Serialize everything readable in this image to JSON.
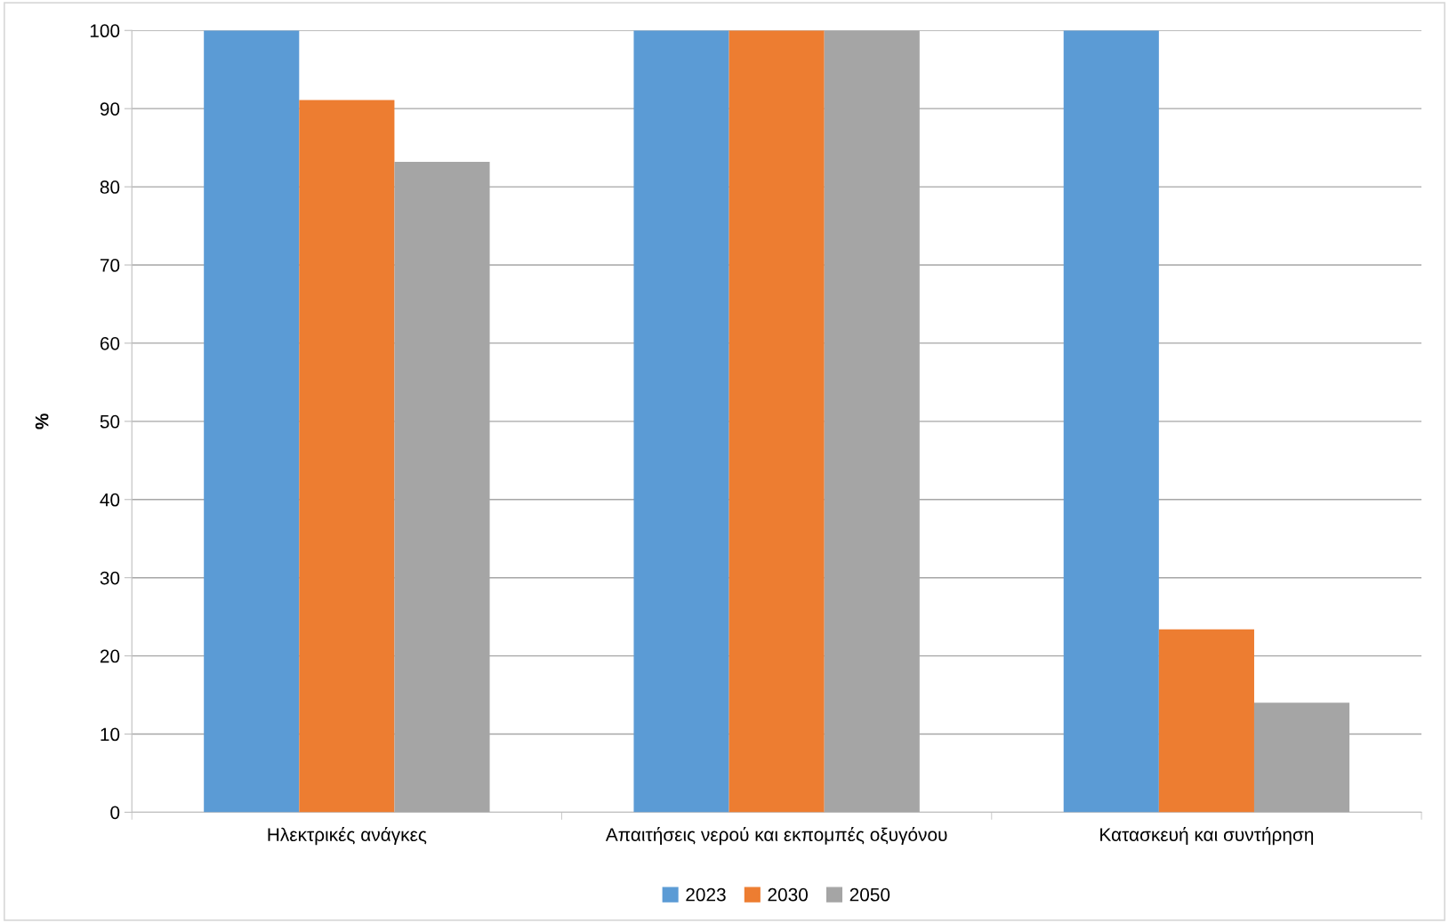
{
  "chart_data": {
    "type": "bar",
    "ylabel": "%",
    "categories": [
      "Ηλεκτρικές ανάγκες",
      "Απαιτήσεις νερού και εκπομπές οξυγόνου",
      "Κατασκευή και συντήρηση"
    ],
    "series": [
      {
        "name": "2023",
        "color": "#5b9bd5",
        "values": [
          100,
          100,
          100
        ]
      },
      {
        "name": "2030",
        "color": "#ed7d31",
        "values": [
          91.1,
          100,
          23.4
        ]
      },
      {
        "name": "2050",
        "color": "#a5a5a5",
        "values": [
          83.2,
          100,
          14
        ]
      }
    ],
    "ylim": [
      0,
      100
    ],
    "yticks": [
      0,
      10,
      20,
      30,
      40,
      50,
      60,
      70,
      80,
      90,
      100
    ],
    "grid": "y",
    "legend": "bottom"
  }
}
